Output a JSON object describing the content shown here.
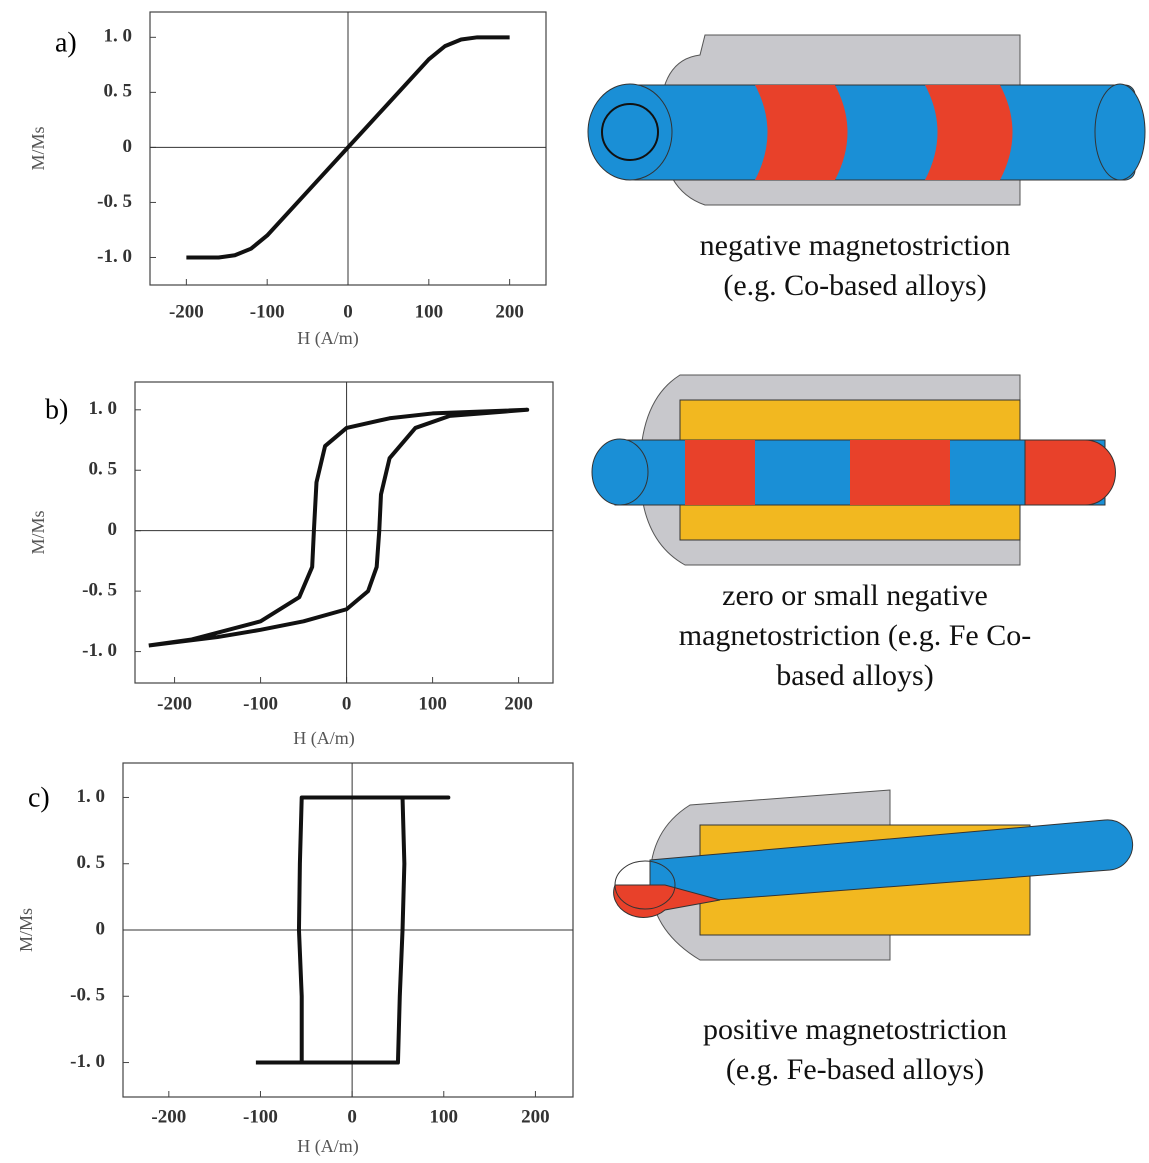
{
  "chart_data": [
    {
      "type": "line",
      "panel_label": "a)",
      "xlabel": "H (A/m)",
      "ylabel": "M/Ms",
      "xlim": [
        -245,
        245
      ],
      "ylim": [
        -1.25,
        1.23
      ],
      "xticks": [
        -200,
        -100,
        0,
        100,
        200
      ],
      "yticks": [
        {
          "value": 1,
          "label": "1. 0"
        },
        {
          "value": 0.5,
          "label": "0. 5"
        },
        0,
        {
          "value": -0.5,
          "label": "-0. 5"
        },
        {
          "value": -1,
          "label": "-1. 0"
        }
      ],
      "zero_lines": true,
      "color": "#111",
      "series": [
        {
          "x": [
            -200,
            -160,
            -140,
            -120,
            -100,
            -50,
            0,
            50,
            100,
            120,
            140,
            160,
            200
          ],
          "values": [
            -1,
            -1,
            -0.98,
            -0.92,
            -0.8,
            -0.4,
            0,
            0.4,
            0.8,
            0.92,
            0.98,
            1,
            1
          ]
        }
      ]
    },
    {
      "type": "line",
      "panel_label": "b)",
      "xlabel": "H (A/m)",
      "ylabel": "M/Ms",
      "xlim": [
        -246,
        240
      ],
      "ylim": [
        -1.26,
        1.23
      ],
      "xticks": [
        -200,
        -100,
        0,
        100,
        200
      ],
      "yticks": [
        {
          "value": 1,
          "label": "1. 0"
        },
        {
          "value": 0.5,
          "label": "0. 5"
        },
        0,
        {
          "value": -0.5,
          "label": "-0. 5"
        },
        {
          "value": -1,
          "label": "-1. 0"
        }
      ],
      "zero_lines": true,
      "color": "#111",
      "series": [
        {
          "x": [
            -230,
            -150,
            -100,
            -50,
            0,
            25,
            35,
            38,
            40,
            50,
            80,
            120,
            210,
            100,
            50,
            0,
            -25,
            -35,
            -38,
            -40,
            -55,
            -100,
            -180,
            -230
          ],
          "values": [
            -0.95,
            -0.88,
            -0.82,
            -0.75,
            -0.65,
            -0.5,
            -0.3,
            0,
            0.3,
            0.6,
            0.85,
            0.95,
            1,
            0.97,
            0.93,
            0.85,
            0.7,
            0.4,
            0,
            -0.3,
            -0.55,
            -0.75,
            -0.9,
            -0.95
          ]
        }
      ]
    },
    {
      "type": "line",
      "panel_label": "c)",
      "xlabel": "H (A/m)",
      "ylabel": "M/Ms",
      "xlim": [
        -250,
        241
      ],
      "ylim": [
        -1.26,
        1.26
      ],
      "xticks": [
        -200,
        -100,
        0,
        100,
        200
      ],
      "yticks": [
        {
          "value": 1,
          "label": "1. 0"
        },
        {
          "value": 0.5,
          "label": "0. 5"
        },
        0,
        {
          "value": -0.5,
          "label": "-0. 5"
        },
        {
          "value": -1,
          "label": "-1. 0"
        }
      ],
      "zero_lines": true,
      "color": "#111",
      "series": [
        {
          "x": [
            -105,
            50,
            52,
            55,
            57,
            55,
            105,
            -55,
            -57,
            -58,
            -55,
            -55,
            -105
          ],
          "values": [
            -1,
            -1,
            -0.5,
            0,
            0.5,
            1,
            1,
            1,
            0.5,
            0,
            -0.5,
            -1,
            -1
          ]
        }
      ]
    }
  ],
  "diagrams": [
    {
      "caption": [
        "negative magnetostriction",
        "(e.g. Co-based alloys)"
      ]
    },
    {
      "caption": [
        "zero or small negative",
        "magnetostriction (e.g. Fe Co-",
        "based alloys)"
      ]
    },
    {
      "caption": [
        "positive magnetostriction",
        "(e.g. Fe-based alloys)"
      ]
    }
  ]
}
